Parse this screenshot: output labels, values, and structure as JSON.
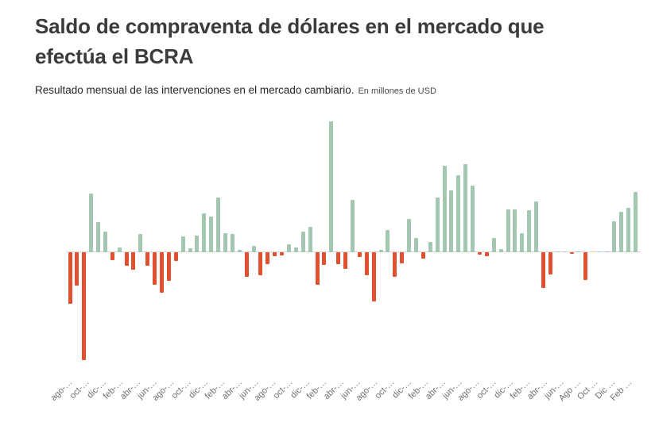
{
  "header": {
    "title": "Saldo de compraventa de dólares en el mercado que efectúa el BCRA",
    "subtitle": "Resultado  mensual de las intervenciones en el mercado cambiario.",
    "unit_note": "En millones de USD"
  },
  "chart_data": {
    "type": "bar",
    "title": "Saldo de compraventa de dólares en el mercado que efectúa el BCRA",
    "subtitle": "Resultado  mensual de las intervenciones en el mercado cambiario.",
    "unit": "millones de USD",
    "xlabel": "",
    "ylabel": "",
    "grid": false,
    "legend": false,
    "baseline": 0,
    "ylim": [
      -4200,
      5100
    ],
    "positive_color": "#a3c7b0",
    "negative_color": "#e0512f",
    "special_bar_colors": {
      "74": "#e9c97e",
      "75": "#9fc9dd",
      "76": "#b4a9cd"
    },
    "x_tick_labels": [
      "ago-…",
      "oct-…",
      "dic-…",
      "feb-…",
      "abr-…",
      "jun-…",
      "ago-…",
      "oct-…",
      "dic-…",
      "feb-…",
      "abr-…",
      "jun-…",
      "ago-…",
      "oct-…",
      "dic-…",
      "feb-…",
      "abr-…",
      "jun-…",
      "ago-…",
      "oct-…",
      "dic-…",
      "feb-…",
      "abr-…",
      "jun-…",
      "ago-…",
      "oct-…",
      "dic-…",
      "feb-…",
      "abr-…",
      "jun-…",
      "Ago …",
      "Oct …",
      "Dic …",
      "Feb …"
    ],
    "values": [
      -1940,
      -1270,
      -4070,
      2210,
      1130,
      780,
      -300,
      180,
      -500,
      -670,
      700,
      -500,
      -1220,
      -1540,
      -1070,
      -330,
      600,
      160,
      630,
      1480,
      1360,
      2080,
      710,
      700,
      80,
      -920,
      230,
      -870,
      -440,
      -140,
      -130,
      290,
      170,
      780,
      960,
      -1220,
      -470,
      4960,
      -440,
      -620,
      1980,
      -170,
      -870,
      -1870,
      90,
      830,
      -920,
      -420,
      1260,
      530,
      -250,
      400,
      2080,
      3280,
      2350,
      2900,
      3330,
      2530,
      -80,
      -160,
      550,
      120,
      1630,
      1630,
      710,
      1600,
      1930,
      -1340,
      -830,
      30,
      30,
      -50,
      30,
      -1050,
      30,
      30,
      30,
      1160,
      1540,
      1670,
      2290
    ]
  }
}
